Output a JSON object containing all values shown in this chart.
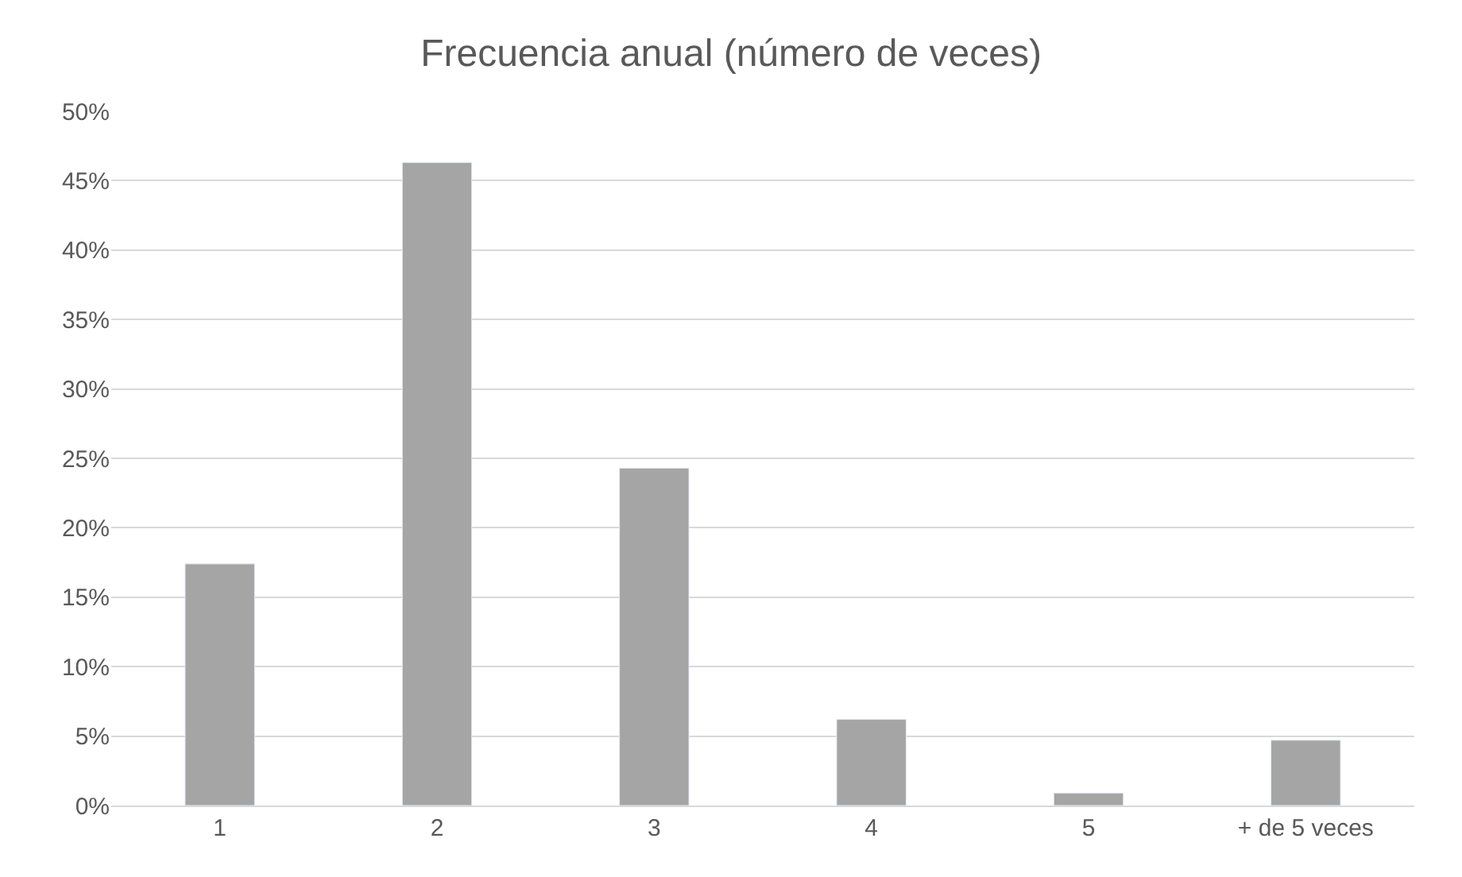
{
  "chart_data": {
    "type": "bar",
    "title": "Frecuencia anual (número de veces)",
    "categories": [
      "1",
      "2",
      "3",
      "4",
      "5",
      "+ de 5 veces"
    ],
    "series": [
      {
        "color": "#a5a5a5",
        "values": [
          17.4,
          46.3,
          24.3,
          6.2,
          0.9,
          4.7
        ]
      }
    ],
    "ylim": [
      0,
      50
    ],
    "yticks": [
      {
        "value": 0,
        "label": "0%"
      },
      {
        "value": 5,
        "label": "5%"
      },
      {
        "value": 10,
        "label": "10%"
      },
      {
        "value": 15,
        "label": "15%"
      },
      {
        "value": 20,
        "label": "20%"
      },
      {
        "value": 25,
        "label": "25%"
      },
      {
        "value": 30,
        "label": "30%"
      },
      {
        "value": 35,
        "label": "35%"
      },
      {
        "value": 40,
        "label": "40%"
      },
      {
        "value": 45,
        "label": "45%"
      },
      {
        "value": 50,
        "label": "50%"
      }
    ],
    "grid": "y"
  }
}
